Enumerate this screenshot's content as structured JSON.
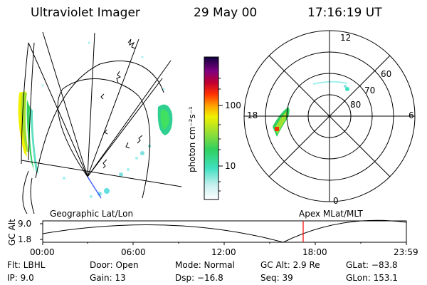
{
  "header": {
    "title": "Ultraviolet Imager",
    "date": "29 May 00",
    "time": "17:16:19 UT"
  },
  "colorbar": {
    "label": "photon cm⁻²s⁻¹",
    "ticks": [
      "100",
      "10"
    ]
  },
  "polar": {
    "latitude_labels": [
      "60",
      "70",
      "80"
    ],
    "mlt_labels": {
      "top": "12",
      "left": "18",
      "right": "6",
      "bottom": "0"
    }
  },
  "map_labels": {
    "left": "Geographic Lat/Lon",
    "right": "Apex MLat/MLT"
  },
  "altitude_plot": {
    "ylabel": "GC Alt",
    "yticks": [
      "9.0",
      "1.8"
    ],
    "xticks": [
      "00:00",
      "06:00",
      "12:00",
      "18:00",
      "23:59"
    ],
    "marker_color": "#ff0000"
  },
  "info": {
    "flt": "Flt: LBHL",
    "ip": "IP:  9.0",
    "door": "Door: Open",
    "gain": "Gain: 13",
    "mode": "Mode: Normal",
    "dsp": "Dsp:  −16.8",
    "gcalt": "GC Alt: 2.9 Re",
    "seq": "Seq: 39",
    "glat": "GLat: −83.8",
    "glon": "GLon: 153.1"
  }
}
